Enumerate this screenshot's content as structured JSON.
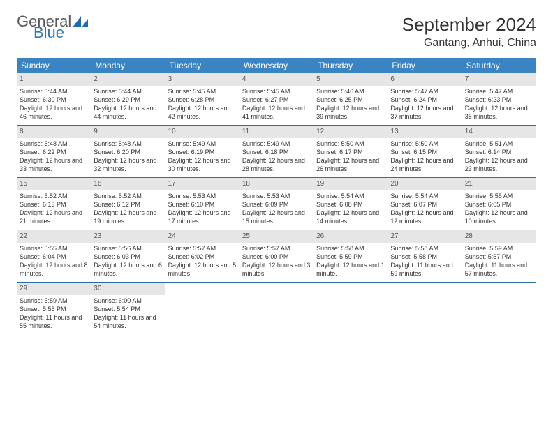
{
  "logo": {
    "general": "General",
    "blue": "Blue"
  },
  "title": "September 2024",
  "location": "Gantang, Anhui, China",
  "colors": {
    "header_bg": "#3b84c4",
    "header_text": "#ffffff",
    "daynum_bg": "#e6e6e6",
    "border": "#2a6fa8",
    "logo_gray": "#5a5a5a",
    "logo_blue": "#2a7ab8"
  },
  "weekdays": [
    "Sunday",
    "Monday",
    "Tuesday",
    "Wednesday",
    "Thursday",
    "Friday",
    "Saturday"
  ],
  "days": [
    {
      "n": 1,
      "sunrise": "5:44 AM",
      "sunset": "6:30 PM",
      "daylight": "12 hours and 46 minutes."
    },
    {
      "n": 2,
      "sunrise": "5:44 AM",
      "sunset": "6:29 PM",
      "daylight": "12 hours and 44 minutes."
    },
    {
      "n": 3,
      "sunrise": "5:45 AM",
      "sunset": "6:28 PM",
      "daylight": "12 hours and 42 minutes."
    },
    {
      "n": 4,
      "sunrise": "5:45 AM",
      "sunset": "6:27 PM",
      "daylight": "12 hours and 41 minutes."
    },
    {
      "n": 5,
      "sunrise": "5:46 AM",
      "sunset": "6:25 PM",
      "daylight": "12 hours and 39 minutes."
    },
    {
      "n": 6,
      "sunrise": "5:47 AM",
      "sunset": "6:24 PM",
      "daylight": "12 hours and 37 minutes."
    },
    {
      "n": 7,
      "sunrise": "5:47 AM",
      "sunset": "6:23 PM",
      "daylight": "12 hours and 35 minutes."
    },
    {
      "n": 8,
      "sunrise": "5:48 AM",
      "sunset": "6:22 PM",
      "daylight": "12 hours and 33 minutes."
    },
    {
      "n": 9,
      "sunrise": "5:48 AM",
      "sunset": "6:20 PM",
      "daylight": "12 hours and 32 minutes."
    },
    {
      "n": 10,
      "sunrise": "5:49 AM",
      "sunset": "6:19 PM",
      "daylight": "12 hours and 30 minutes."
    },
    {
      "n": 11,
      "sunrise": "5:49 AM",
      "sunset": "6:18 PM",
      "daylight": "12 hours and 28 minutes."
    },
    {
      "n": 12,
      "sunrise": "5:50 AM",
      "sunset": "6:17 PM",
      "daylight": "12 hours and 26 minutes."
    },
    {
      "n": 13,
      "sunrise": "5:50 AM",
      "sunset": "6:15 PM",
      "daylight": "12 hours and 24 minutes."
    },
    {
      "n": 14,
      "sunrise": "5:51 AM",
      "sunset": "6:14 PM",
      "daylight": "12 hours and 23 minutes."
    },
    {
      "n": 15,
      "sunrise": "5:52 AM",
      "sunset": "6:13 PM",
      "daylight": "12 hours and 21 minutes."
    },
    {
      "n": 16,
      "sunrise": "5:52 AM",
      "sunset": "6:12 PM",
      "daylight": "12 hours and 19 minutes."
    },
    {
      "n": 17,
      "sunrise": "5:53 AM",
      "sunset": "6:10 PM",
      "daylight": "12 hours and 17 minutes."
    },
    {
      "n": 18,
      "sunrise": "5:53 AM",
      "sunset": "6:09 PM",
      "daylight": "12 hours and 15 minutes."
    },
    {
      "n": 19,
      "sunrise": "5:54 AM",
      "sunset": "6:08 PM",
      "daylight": "12 hours and 14 minutes."
    },
    {
      "n": 20,
      "sunrise": "5:54 AM",
      "sunset": "6:07 PM",
      "daylight": "12 hours and 12 minutes."
    },
    {
      "n": 21,
      "sunrise": "5:55 AM",
      "sunset": "6:05 PM",
      "daylight": "12 hours and 10 minutes."
    },
    {
      "n": 22,
      "sunrise": "5:55 AM",
      "sunset": "6:04 PM",
      "daylight": "12 hours and 8 minutes."
    },
    {
      "n": 23,
      "sunrise": "5:56 AM",
      "sunset": "6:03 PM",
      "daylight": "12 hours and 6 minutes."
    },
    {
      "n": 24,
      "sunrise": "5:57 AM",
      "sunset": "6:02 PM",
      "daylight": "12 hours and 5 minutes."
    },
    {
      "n": 25,
      "sunrise": "5:57 AM",
      "sunset": "6:00 PM",
      "daylight": "12 hours and 3 minutes."
    },
    {
      "n": 26,
      "sunrise": "5:58 AM",
      "sunset": "5:59 PM",
      "daylight": "12 hours and 1 minute."
    },
    {
      "n": 27,
      "sunrise": "5:58 AM",
      "sunset": "5:58 PM",
      "daylight": "11 hours and 59 minutes."
    },
    {
      "n": 28,
      "sunrise": "5:59 AM",
      "sunset": "5:57 PM",
      "daylight": "11 hours and 57 minutes."
    },
    {
      "n": 29,
      "sunrise": "5:59 AM",
      "sunset": "5:55 PM",
      "daylight": "11 hours and 55 minutes."
    },
    {
      "n": 30,
      "sunrise": "6:00 AM",
      "sunset": "5:54 PM",
      "daylight": "11 hours and 54 minutes."
    }
  ],
  "labels": {
    "sunrise": "Sunrise:",
    "sunset": "Sunset:",
    "daylight": "Daylight:"
  }
}
